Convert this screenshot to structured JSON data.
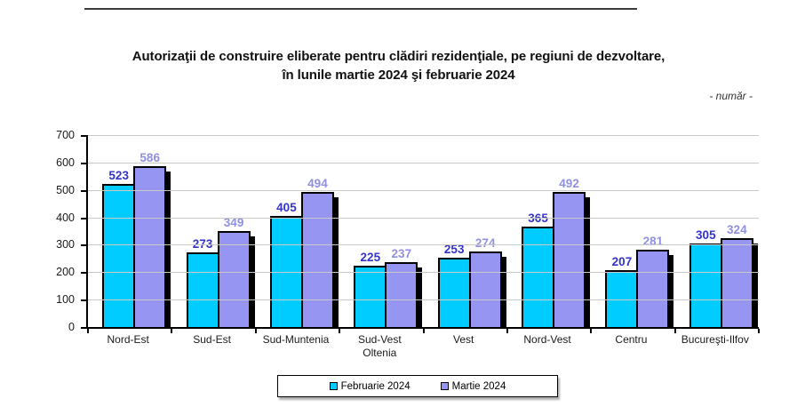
{
  "title": {
    "line1": "Autorizaţii de construire eliberate pentru clădiri rezidenţiale, pe regiuni de dezvoltare,",
    "line2": "în lunile martie 2024 şi februarie 2024"
  },
  "unit_note": "- număr -",
  "chart_data": {
    "type": "bar",
    "title": "Autorizaţii de construire eliberate pentru clădiri rezidenţiale, pe regiuni de dezvoltare, în lunile martie 2024 şi februarie 2024",
    "categories": [
      "Nord-Est",
      "Sud-Est",
      "Sud-Muntenia",
      "Sud-Vest Oltenia",
      "Vest",
      "Nord-Vest",
      "Centru",
      "Bucureşti-Ilfov"
    ],
    "series": [
      {
        "name": "Februarie 2024",
        "color": "#00CCFF",
        "label_color": "#3333CC",
        "values": [
          523,
          273,
          405,
          225,
          253,
          365,
          207,
          305
        ]
      },
      {
        "name": "Martie 2024",
        "color": "#9696F2",
        "label_color": "#9090E0",
        "values": [
          586,
          349,
          494,
          237,
          274,
          492,
          281,
          324
        ]
      }
    ],
    "xlabel": "",
    "ylabel": "",
    "ylim": [
      0,
      700
    ],
    "ytick_step": 100,
    "grid": "horizontal",
    "gridline_color": "#C9C9C9",
    "axis_color": "#000000",
    "legend_position": "bottom",
    "value_labels": true
  }
}
